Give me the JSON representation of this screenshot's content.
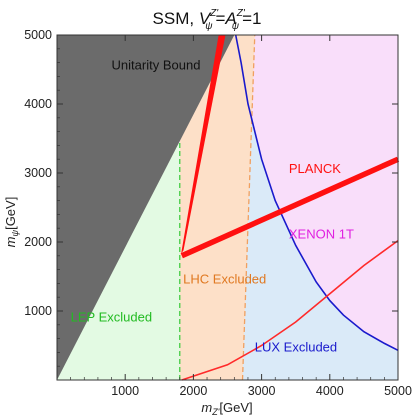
{
  "chart_data": {
    "type": "area",
    "title_prefix": "SSM, ",
    "title_math": {
      "v": "V",
      "psi": "ψ",
      "zp": "Z'",
      "eq": "=",
      "a": "A",
      "rhs": "=1"
    },
    "xlabel": {
      "base": "m",
      "sub": "Z'",
      "unit": "[GeV]"
    },
    "ylabel": {
      "base": "m",
      "sub": "ψ",
      "unit": "[GeV]"
    },
    "xlim": [
      0,
      5000
    ],
    "ylim": [
      0,
      5000
    ],
    "xticks": [
      "1000",
      "2000",
      "3000",
      "4000",
      "5000"
    ],
    "yticks": [
      "1000",
      "2000",
      "3000",
      "4000",
      "5000"
    ],
    "xtick_values": [
      1000,
      2000,
      3000,
      4000,
      5000
    ],
    "ytick_values": [
      1000,
      2000,
      3000,
      4000,
      5000
    ],
    "regions": [
      {
        "name": "LEP Excluded",
        "color": "#e3fae3",
        "boundary_color": "#44cc44"
      },
      {
        "name": "LHC Excluded",
        "color": "#fde0c8",
        "boundary_color": "#f0a060"
      },
      {
        "name": "LUX Excluded",
        "color": "#daeaf8",
        "boundary_color": "#1a1acc"
      },
      {
        "name": "XENON 1T",
        "color": "#f9defa"
      },
      {
        "name": "Unitarity Bound",
        "color": "#6b6b6b"
      },
      {
        "name": "PLANCK",
        "color": "#ff1010"
      }
    ],
    "unitarity_bound": {
      "x": [
        0,
        2600
      ],
      "y": [
        0,
        5000
      ]
    },
    "lep_boundary_x": 1800,
    "lhc_boundary": {
      "x": [
        2720,
        2900
      ],
      "y": [
        0,
        5000
      ]
    },
    "lux_curve": {
      "x": [
        2620,
        2700,
        2800,
        3000,
        3200,
        3500,
        3800,
        4000,
        4200,
        4500,
        4800,
        5000
      ],
      "y": [
        5000,
        4600,
        4000,
        3200,
        2600,
        1950,
        1420,
        1150,
        940,
        700,
        530,
        430
      ]
    },
    "xenon_curve": {
      "x": [
        1830,
        2500,
        3000,
        3500,
        4000,
        4500,
        5000
      ],
      "y": [
        0,
        220,
        500,
        840,
        1250,
        1660,
        2020
      ]
    },
    "planck_lower": {
      "x": [
        1830,
        5000
      ],
      "y": [
        1800,
        3200
      ]
    },
    "planck_upper": {
      "x": [
        1830,
        2450
      ],
      "y": [
        1850,
        5000
      ]
    },
    "annotations": {
      "unitarity": "Unitarity Bound",
      "planck": "PLANCK",
      "xenon": "XENON 1T",
      "lhc": "LHC Excluded",
      "lep": "LEP Excluded",
      "lux": "LUX Excluded"
    },
    "annotation_colors": {
      "unitarity": "#111111",
      "planck": "#ff1010",
      "xenon": "#e020e0",
      "lhc": "#e07820",
      "lep": "#22bb22",
      "lux": "#1a1acc"
    }
  }
}
